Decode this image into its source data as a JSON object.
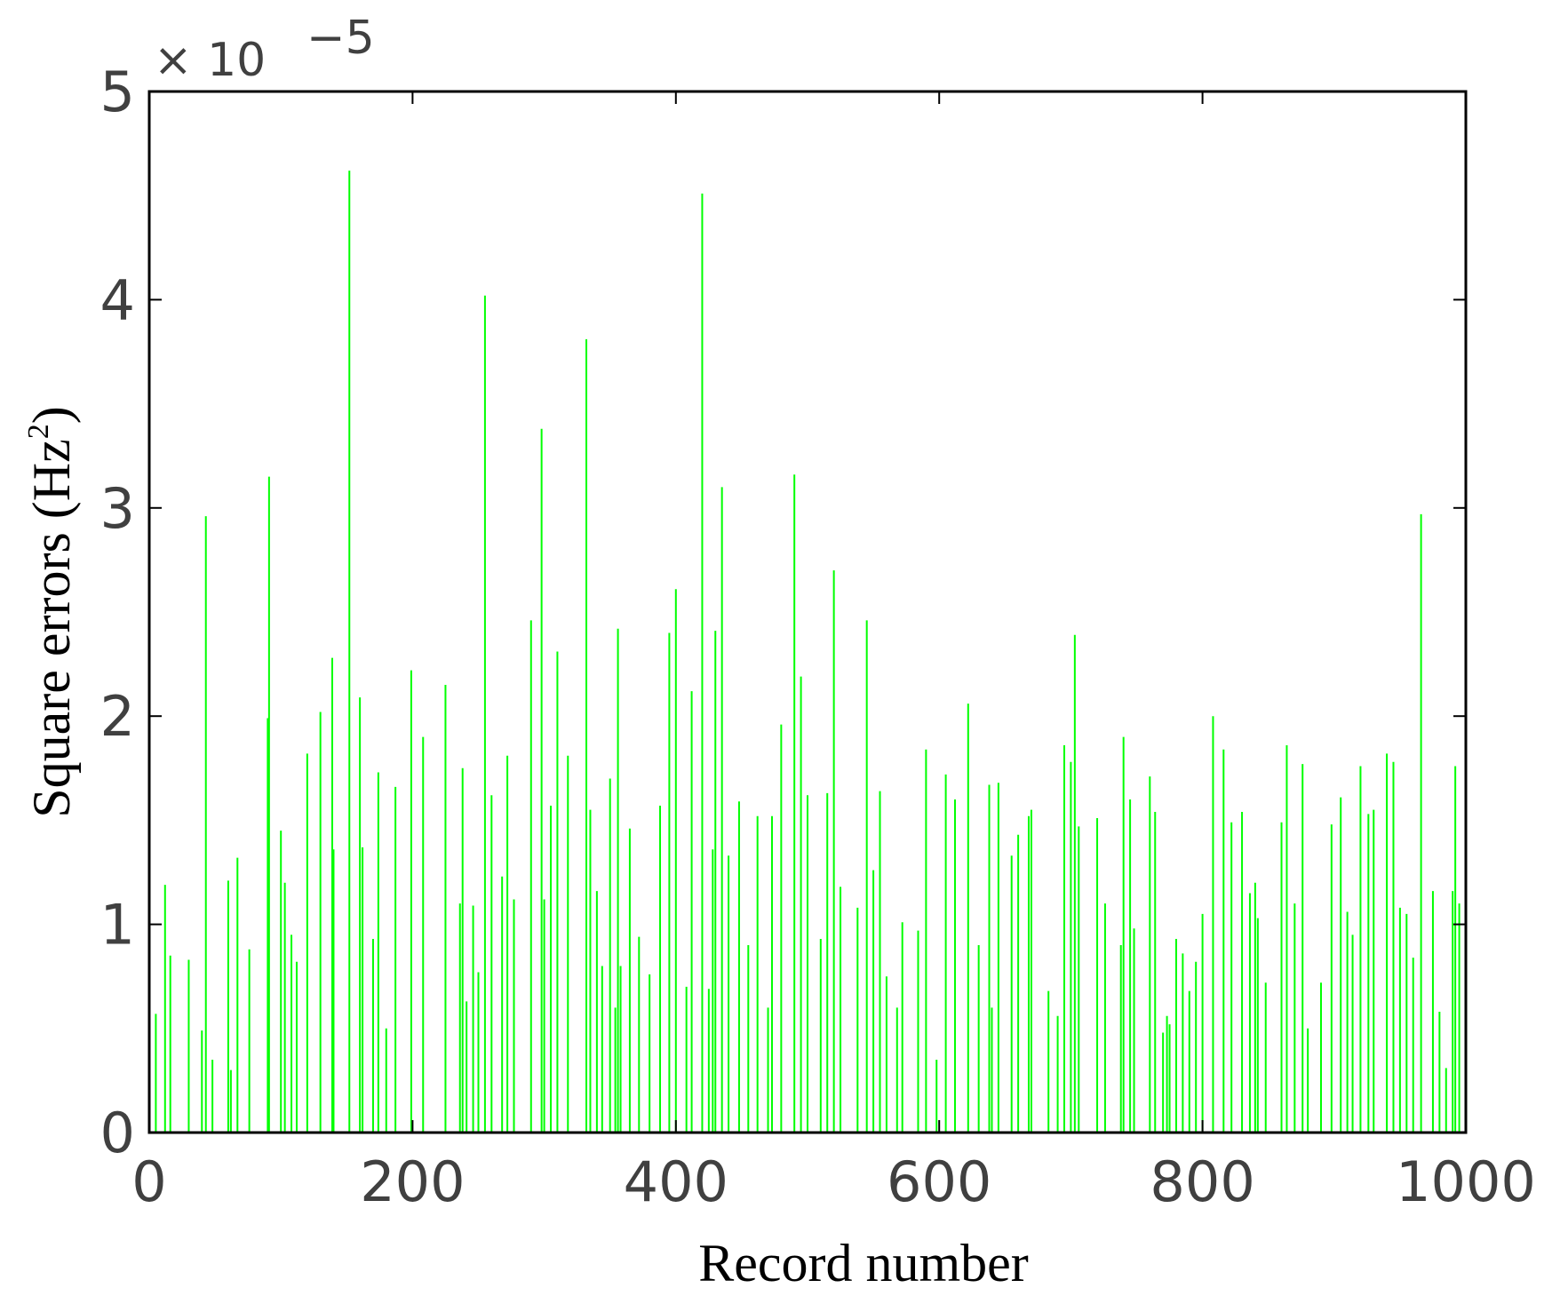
{
  "chart_data": {
    "type": "bar",
    "title": "",
    "xlabel": "Record number",
    "ylabel": "Square errors (Hz",
    "ylabel_superscript": "2",
    "ylabel_suffix": ")",
    "y_scale_multiplier": "× 10",
    "y_scale_exponent": "−5",
    "xlim": [
      0,
      1000
    ],
    "ylim": [
      0,
      5
    ],
    "xticks": [
      0,
      200,
      400,
      600,
      800,
      1000
    ],
    "xtick_labels": [
      "0",
      "200",
      "400",
      "600",
      "800",
      "1000"
    ],
    "yticks": [
      0,
      1,
      2,
      3,
      4,
      5
    ],
    "ytick_labels": [
      "0",
      "1",
      "2",
      "3",
      "4",
      "5"
    ],
    "grid": false,
    "legend": "none",
    "bar_color": "#00ff00",
    "series": [
      {
        "x": [
          5,
          12,
          16,
          30,
          40,
          43,
          48,
          60,
          62,
          67,
          76,
          90,
          91,
          100,
          103,
          108,
          112,
          120,
          130,
          139,
          140,
          152,
          160,
          162,
          170,
          174,
          180,
          187,
          199,
          208,
          225,
          236,
          238,
          241,
          246,
          250,
          255,
          260,
          268,
          272,
          277,
          290,
          298,
          300,
          305,
          310,
          318,
          332,
          335,
          340,
          344,
          350,
          354,
          356,
          358,
          365,
          372,
          380,
          388,
          395,
          400,
          408,
          412,
          420,
          425,
          428,
          430,
          435,
          440,
          448,
          455,
          462,
          470,
          473,
          480,
          490,
          495,
          500,
          510,
          515,
          520,
          525,
          538,
          545,
          550,
          555,
          560,
          568,
          572,
          584,
          590,
          598,
          605,
          612,
          622,
          630,
          638,
          640,
          645,
          655,
          660,
          668,
          670,
          683,
          690,
          695,
          700,
          703,
          706,
          720,
          726,
          738,
          740,
          745,
          748,
          760,
          764,
          770,
          773,
          775,
          780,
          785,
          790,
          795,
          800,
          808,
          816,
          822,
          830,
          836,
          840,
          842,
          848,
          860,
          864,
          870,
          876,
          880,
          890,
          898,
          905,
          910,
          914,
          920,
          926,
          930,
          940,
          945,
          950,
          955,
          960,
          966,
          975,
          980,
          985,
          990,
          992,
          995
        ],
        "values": [
          0.57,
          1.19,
          0.85,
          0.83,
          0.49,
          2.96,
          0.35,
          1.21,
          0.3,
          1.32,
          0.88,
          1.99,
          3.15,
          1.45,
          1.2,
          0.95,
          0.82,
          1.82,
          2.02,
          2.28,
          1.36,
          4.62,
          2.09,
          1.37,
          0.93,
          1.73,
          0.5,
          1.66,
          2.22,
          1.9,
          2.15,
          1.1,
          1.75,
          0.63,
          1.09,
          0.77,
          4.02,
          1.62,
          1.23,
          1.81,
          1.12,
          2.46,
          3.38,
          1.12,
          1.57,
          2.31,
          1.81,
          3.81,
          1.55,
          1.16,
          0.8,
          1.7,
          0.6,
          2.42,
          0.8,
          1.46,
          0.94,
          0.76,
          1.57,
          2.4,
          2.61,
          0.7,
          2.12,
          4.51,
          0.69,
          1.36,
          2.41,
          3.1,
          1.33,
          1.59,
          0.9,
          1.52,
          0.6,
          1.52,
          1.96,
          3.16,
          2.19,
          1.62,
          0.93,
          1.63,
          2.7,
          1.18,
          1.08,
          2.46,
          1.26,
          1.64,
          0.75,
          0.6,
          1.01,
          0.97,
          1.84,
          0.35,
          1.72,
          1.6,
          2.06,
          0.9,
          1.67,
          0.6,
          1.68,
          1.33,
          1.43,
          1.52,
          1.55,
          0.68,
          0.56,
          1.86,
          1.78,
          2.39,
          1.47,
          1.51,
          1.1,
          0.9,
          1.9,
          1.6,
          0.98,
          1.71,
          1.54,
          0.48,
          0.56,
          0.52,
          0.93,
          0.86,
          0.68,
          0.82,
          1.05,
          2.0,
          1.84,
          1.49,
          1.54,
          1.15,
          1.2,
          1.03,
          0.72,
          1.49,
          1.86,
          1.1,
          1.77,
          0.5,
          0.72,
          1.48,
          1.61,
          1.06,
          0.95,
          1.76,
          1.53,
          1.55,
          1.82,
          1.78,
          1.08,
          1.05,
          0.84,
          2.97,
          1.16,
          0.58,
          0.31,
          1.16,
          1.76,
          1.1
        ]
      }
    ]
  }
}
